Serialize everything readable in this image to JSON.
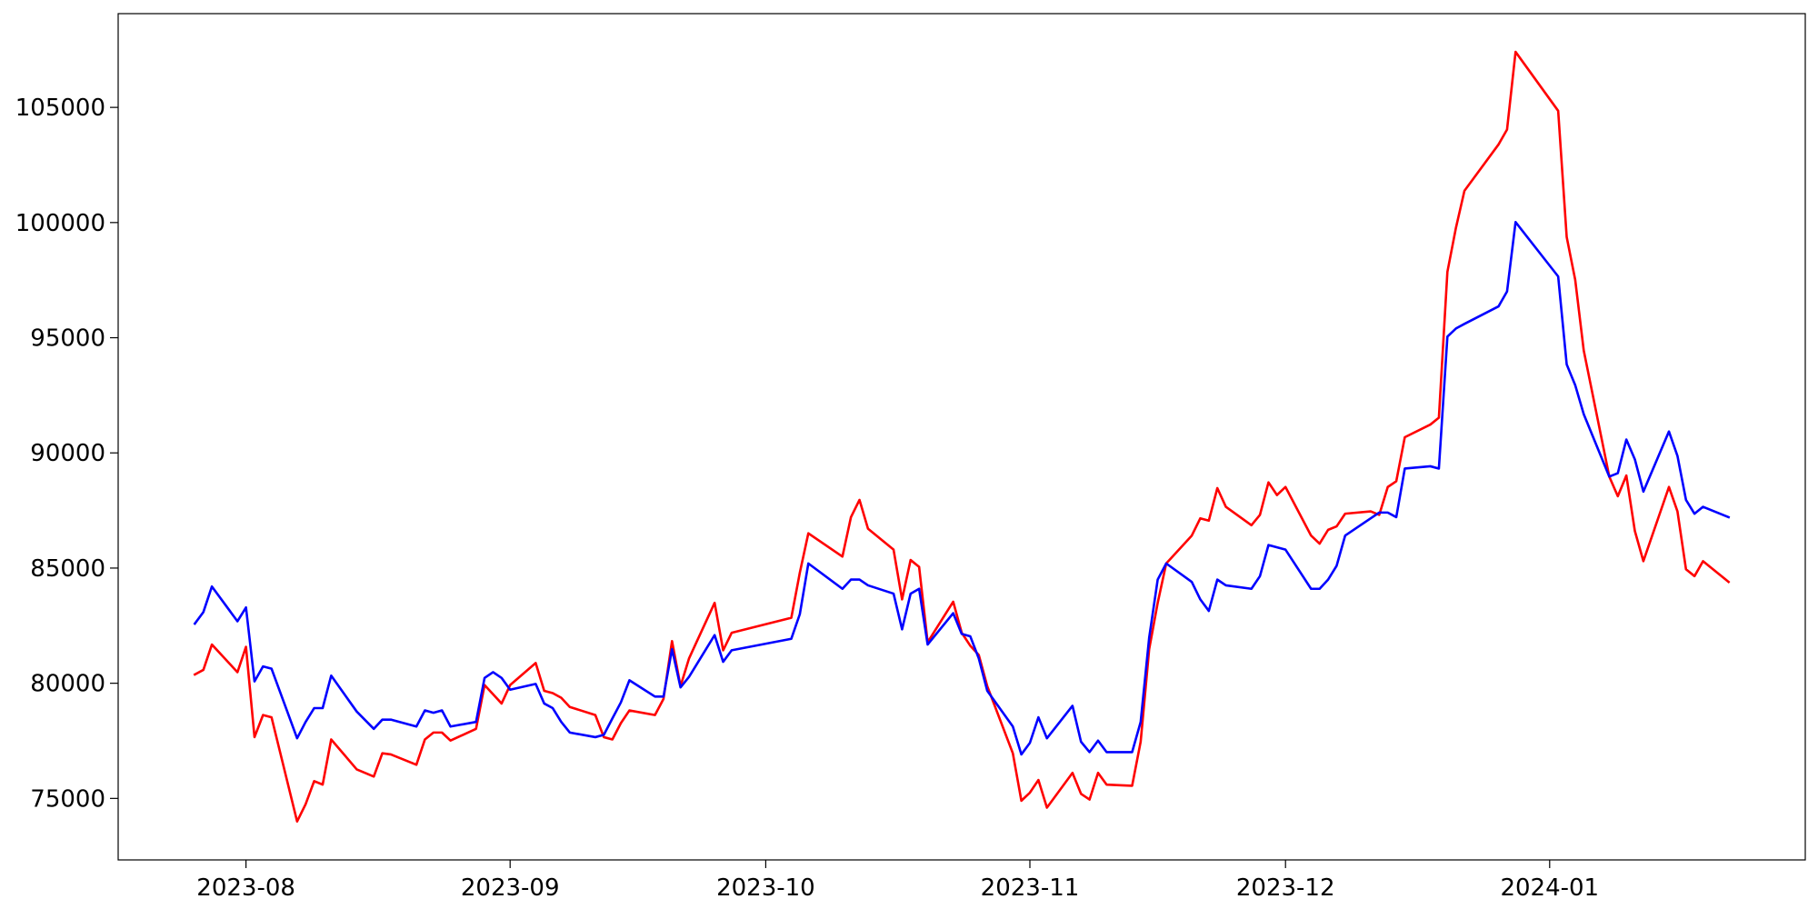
{
  "chart_data": {
    "type": "line",
    "x": [
      "2023-07-26",
      "2023-07-27",
      "2023-07-28",
      "2023-07-31",
      "2023-08-01",
      "2023-08-02",
      "2023-08-03",
      "2023-08-04",
      "2023-08-07",
      "2023-08-08",
      "2023-08-09",
      "2023-08-10",
      "2023-08-11",
      "2023-08-14",
      "2023-08-16",
      "2023-08-17",
      "2023-08-18",
      "2023-08-21",
      "2023-08-22",
      "2023-08-23",
      "2023-08-24",
      "2023-08-25",
      "2023-08-28",
      "2023-08-29",
      "2023-08-30",
      "2023-08-31",
      "2023-09-01",
      "2023-09-04",
      "2023-09-05",
      "2023-09-06",
      "2023-09-07",
      "2023-09-08",
      "2023-09-11",
      "2023-09-12",
      "2023-09-13",
      "2023-09-14",
      "2023-09-15",
      "2023-09-18",
      "2023-09-19",
      "2023-09-20",
      "2023-09-21",
      "2023-09-22",
      "2023-09-25",
      "2023-09-26",
      "2023-09-27",
      "2023-10-04",
      "2023-10-05",
      "2023-10-06",
      "2023-10-10",
      "2023-10-11",
      "2023-10-12",
      "2023-10-13",
      "2023-10-16",
      "2023-10-17",
      "2023-10-18",
      "2023-10-19",
      "2023-10-20",
      "2023-10-23",
      "2023-10-24",
      "2023-10-25",
      "2023-10-26",
      "2023-10-27",
      "2023-10-30",
      "2023-10-31",
      "2023-11-01",
      "2023-11-02",
      "2023-11-03",
      "2023-11-06",
      "2023-11-07",
      "2023-11-08",
      "2023-11-09",
      "2023-11-10",
      "2023-11-13",
      "2023-11-14",
      "2023-11-15",
      "2023-11-16",
      "2023-11-17",
      "2023-11-20",
      "2023-11-21",
      "2023-11-22",
      "2023-11-23",
      "2023-11-24",
      "2023-11-27",
      "2023-11-28",
      "2023-11-29",
      "2023-11-30",
      "2023-12-01",
      "2023-12-04",
      "2023-12-05",
      "2023-12-06",
      "2023-12-07",
      "2023-12-08",
      "2023-12-11",
      "2023-12-12",
      "2023-12-13",
      "2023-12-14",
      "2023-12-15",
      "2023-12-18",
      "2023-12-19",
      "2023-12-20",
      "2023-12-21",
      "2023-12-22",
      "2023-12-26",
      "2023-12-27",
      "2023-12-28",
      "2024-01-02",
      "2024-01-03",
      "2024-01-04",
      "2024-01-05",
      "2024-01-08",
      "2024-01-09",
      "2024-01-10",
      "2024-01-11",
      "2024-01-12",
      "2024-01-15",
      "2024-01-16",
      "2024-01-17",
      "2024-01-18",
      "2024-01-19",
      "2024-01-22"
    ],
    "series": [
      {
        "color": "#ff0000",
        "values": [
          80380,
          80580,
          81680,
          80480,
          81580,
          77660,
          78620,
          78520,
          74000,
          74750,
          75750,
          75600,
          77560,
          76260,
          75950,
          76960,
          76910,
          76460,
          77560,
          77860,
          77860,
          77510,
          78020,
          79920,
          79520,
          79120,
          79920,
          80880,
          79670,
          79570,
          79370,
          78970,
          78620,
          77660,
          77560,
          78270,
          78820,
          78620,
          79320,
          81830,
          79870,
          81080,
          83490,
          81430,
          82190,
          82840,
          84800,
          86510,
          85500,
          87210,
          87960,
          86710,
          85800,
          83640,
          85350,
          85050,
          81780,
          83540,
          82190,
          81630,
          81230,
          79870,
          76960,
          74900,
          75250,
          75800,
          74600,
          76110,
          75200,
          74950,
          76110,
          75600,
          75550,
          77460,
          81480,
          83490,
          85200,
          86410,
          87160,
          87060,
          88470,
          87660,
          86860,
          87310,
          88720,
          88170,
          88520,
          86410,
          86060,
          86660,
          86810,
          87360,
          87460,
          87310,
          88520,
          88770,
          90680,
          91230,
          91530,
          97860,
          99770,
          101380,
          103390,
          104040,
          107410,
          104850,
          99370,
          97510,
          94450,
          88970,
          88120,
          89020,
          86610,
          85300,
          88520,
          87460,
          84950,
          84650,
          85300,
          84400
        ]
      },
      {
        "color": "#0000ff",
        "values": [
          82590,
          83090,
          84200,
          82690,
          83290,
          80080,
          80730,
          80630,
          77610,
          78320,
          78920,
          78920,
          80330,
          78770,
          78020,
          78420,
          78420,
          78120,
          78820,
          78720,
          78820,
          78120,
          78320,
          80230,
          80480,
          80230,
          79720,
          79970,
          79120,
          78920,
          78320,
          77860,
          77660,
          77760,
          78470,
          79170,
          80130,
          79420,
          79420,
          81480,
          79820,
          80280,
          82090,
          80930,
          81430,
          81930,
          83000,
          85200,
          84100,
          84500,
          84500,
          84250,
          83890,
          82340,
          83890,
          84100,
          81680,
          83040,
          82140,
          82040,
          81080,
          79670,
          78120,
          76910,
          77410,
          78520,
          77610,
          79020,
          77460,
          77010,
          77510,
          77010,
          77010,
          78320,
          81980,
          84500,
          85200,
          84400,
          83640,
          83140,
          84500,
          84250,
          84100,
          84650,
          86000,
          85900,
          85800,
          84100,
          84100,
          84500,
          85100,
          86410,
          87160,
          87410,
          87410,
          87210,
          89320,
          89420,
          89320,
          95050,
          95400,
          95600,
          96360,
          97010,
          100020,
          97660,
          93840,
          92940,
          91680,
          88970,
          89120,
          90580,
          89720,
          88320,
          90930,
          89870,
          87960,
          87360,
          87660,
          87210
        ]
      }
    ],
    "xlim": [
      "2023-07-17",
      "2024-01-31"
    ],
    "xticks": [
      {
        "value": "2023-08-01",
        "label": "2023-08"
      },
      {
        "value": "2023-09-01",
        "label": "2023-09"
      },
      {
        "value": "2023-10-01",
        "label": "2023-10"
      },
      {
        "value": "2023-11-01",
        "label": "2023-11"
      },
      {
        "value": "2023-12-01",
        "label": "2023-12"
      },
      {
        "value": "2024-01-01",
        "label": "2024-01"
      }
    ],
    "ylim": [
      72330,
      109070
    ],
    "yticks": [
      75000,
      80000,
      85000,
      90000,
      95000,
      100000,
      105000
    ],
    "grid": false
  }
}
